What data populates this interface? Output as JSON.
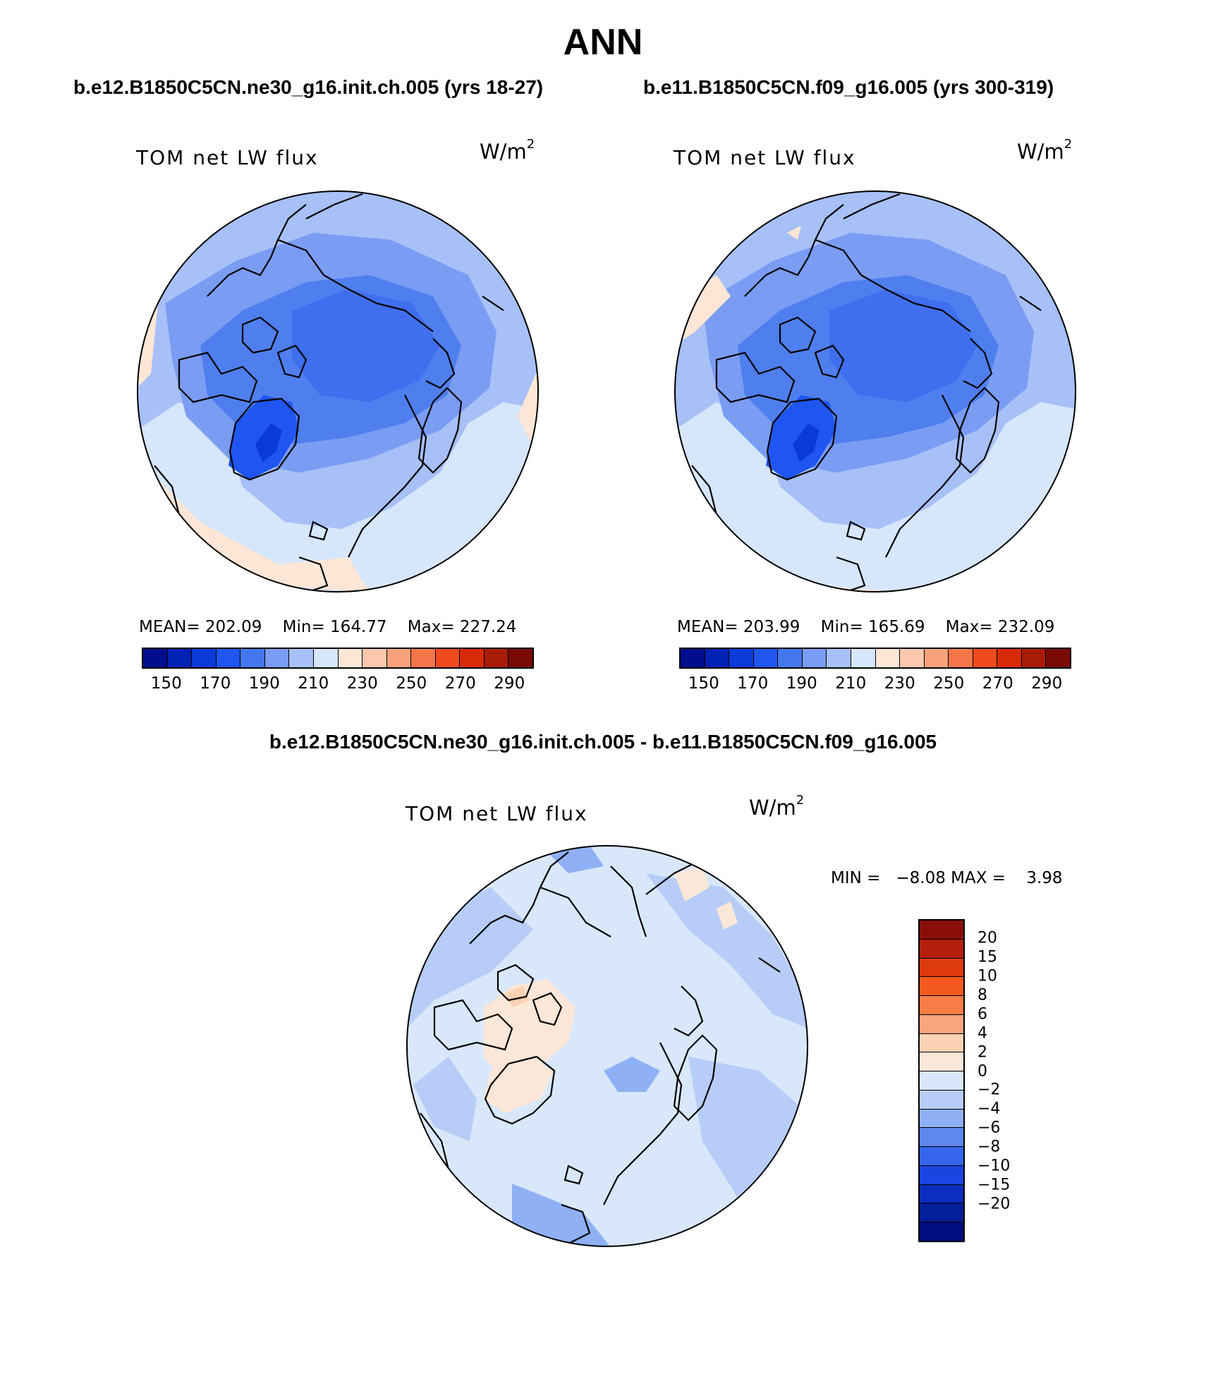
{
  "title": "ANN",
  "case1_title": "b.e12.B1850C5CN.ne30_g16.init.ch.005 (yrs 18-27)",
  "case2_title": "b.e11.B1850C5CN.f09_g16.005 (yrs 300-319)",
  "diff_title": "b.e12.B1850C5CN.ne30_g16.init.ch.005 - b.e11.B1850C5CN.f09_g16.005",
  "panels": {
    "left": {
      "label": "TOM net LW flux",
      "units_base": "W/m",
      "units_exp": "2",
      "mean_label": "MEAN=",
      "mean": "202.09",
      "min_label": "Min=",
      "min": "164.77",
      "max_label": "Max=",
      "max": "227.24"
    },
    "right": {
      "label": "TOM net LW flux",
      "units_base": "W/m",
      "units_exp": "2",
      "mean_label": "MEAN=",
      "mean": "203.99",
      "min_label": "Min=",
      "min": "165.69",
      "max_label": "Max=",
      "max": "232.09"
    },
    "diff": {
      "label": "TOM net LW flux",
      "units_base": "W/m",
      "units_exp": "2",
      "min_label": "MIN =",
      "min": "−8.08",
      "max_label": "MAX =",
      "max": "3.98"
    }
  },
  "colorbar_abs": {
    "colors": [
      "#000d8c",
      "#0022b3",
      "#0a3bd9",
      "#1f55f0",
      "#4477ee",
      "#7a9cf3",
      "#a7c0f7",
      "#d6e6fb",
      "#fde6d6",
      "#fbc7ad",
      "#f7a27b",
      "#f4754a",
      "#f04b1e",
      "#d72a06",
      "#a81c06",
      "#7a0a04"
    ],
    "ticks": [
      "150",
      "170",
      "190",
      "210",
      "230",
      "250",
      "270",
      "290"
    ]
  },
  "colorbar_diff": {
    "colors": [
      "#8a0f0a",
      "#b5200c",
      "#dd3a0d",
      "#f45a1f",
      "#f67d45",
      "#f9a57c",
      "#fcd2b4",
      "#fbe7d7",
      "#d9e7fb",
      "#b7cdf7",
      "#8fb0f4",
      "#5d88ee",
      "#3565ec",
      "#1b45e0",
      "#0c2ec0",
      "#031f99",
      "#000d80"
    ],
    "ticks": [
      "20",
      "15",
      "10",
      "8",
      "6",
      "4",
      "2",
      "0",
      "−2",
      "−4",
      "−6",
      "−8",
      "−10",
      "−15",
      "−20"
    ]
  },
  "chart_data": [
    {
      "type": "heatmap",
      "title": "TOM net LW flux",
      "subtitle": "b.e12.B1850C5CN.ne30_g16.init.ch.005 (yrs 18-27)",
      "units": "W/m2",
      "projection": "north polar stereographic",
      "mean": 202.09,
      "min": 164.77,
      "max": 227.24,
      "levels": [
        150,
        160,
        170,
        180,
        190,
        200,
        210,
        220,
        230,
        240,
        250,
        260,
        270,
        280,
        290
      ]
    },
    {
      "type": "heatmap",
      "title": "TOM net LW flux",
      "subtitle": "b.e11.B1850C5CN.f09_g16.005 (yrs 300-319)",
      "units": "W/m2",
      "projection": "north polar stereographic",
      "mean": 203.99,
      "min": 165.69,
      "max": 232.09,
      "levels": [
        150,
        160,
        170,
        180,
        190,
        200,
        210,
        220,
        230,
        240,
        250,
        260,
        270,
        280,
        290
      ]
    },
    {
      "type": "heatmap",
      "title": "TOM net LW flux",
      "subtitle": "b.e12.B1850C5CN.ne30_g16.init.ch.005 - b.e11.B1850C5CN.f09_g16.005",
      "units": "W/m2",
      "projection": "north polar stereographic",
      "min": -8.08,
      "max": 3.98,
      "levels": [
        -20,
        -15,
        -10,
        -8,
        -6,
        -4,
        -2,
        0,
        2,
        4,
        6,
        8,
        10,
        15,
        20
      ]
    }
  ]
}
